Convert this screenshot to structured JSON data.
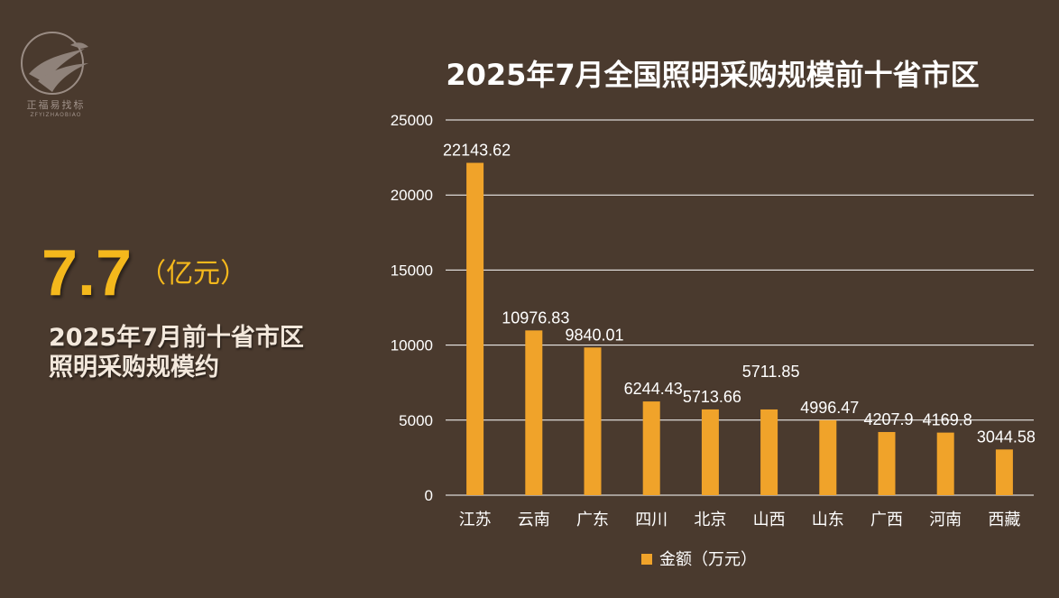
{
  "logo": {
    "text": "正福易找标",
    "subtext": "ZFYIZHAOBIAO"
  },
  "kpi": {
    "value": "7.7",
    "unit": "（亿元）",
    "desc_line1": "2025年7月前十省市区",
    "desc_line2": "照明采购规模约"
  },
  "colors": {
    "background": "#4a3a2e",
    "bar": "#f0a32a",
    "kpi": "#f4b81c"
  },
  "chart_data": {
    "type": "bar",
    "title": "2025年7月全国照明采购规模前十省市区",
    "categories": [
      "江苏",
      "云南",
      "广东",
      "四川",
      "北京",
      "山西",
      "山东",
      "广西",
      "河南",
      "西藏"
    ],
    "series": [
      {
        "name": "金额（万元）",
        "values": [
          22143.62,
          10976.83,
          9840.01,
          6244.43,
          5713.66,
          5711.85,
          4996.47,
          4207.9,
          4169.8,
          3044.58
        ],
        "labels": [
          "22143.62",
          "10976.83",
          "9840.01",
          "6244.43",
          "5713.66",
          "5711.85",
          "4996.47",
          "4207.9",
          "4169.8",
          "3044.58"
        ]
      }
    ],
    "yticks": [
      "0",
      "5000",
      "10000",
      "15000",
      "20000",
      "25000"
    ],
    "ylim": [
      0,
      25000
    ],
    "grid": true,
    "legend": "bottom",
    "xlabel": "",
    "ylabel": ""
  }
}
